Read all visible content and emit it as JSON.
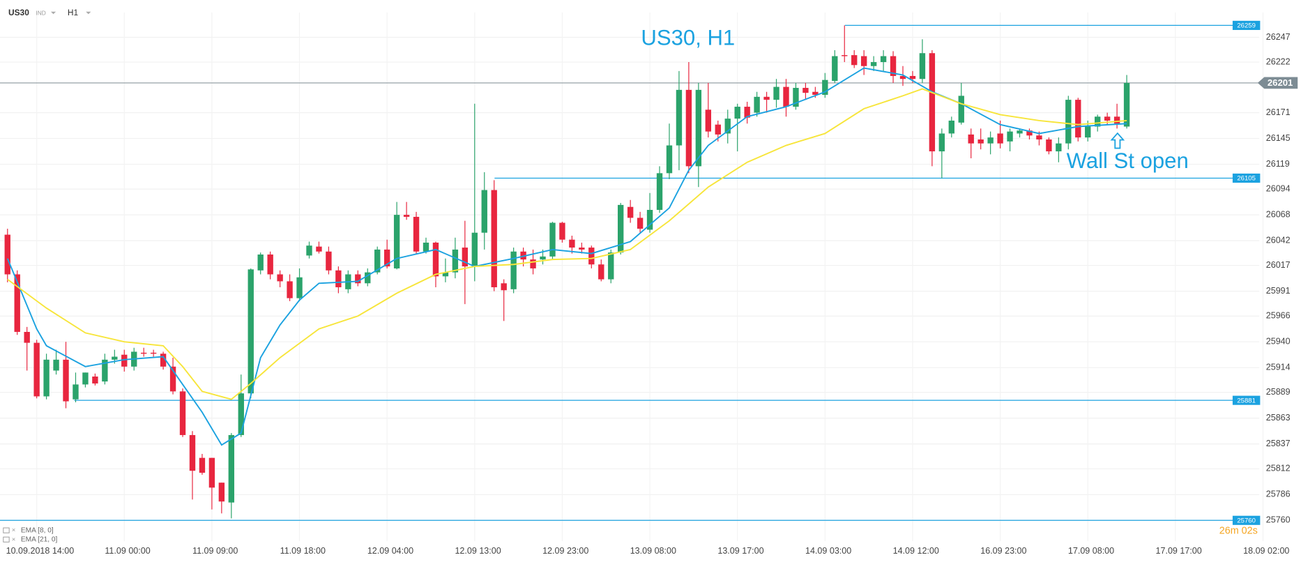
{
  "header": {
    "symbol": "US30",
    "market": "IND",
    "timeframe": "H1"
  },
  "chart_data": {
    "type": "candlestick",
    "title": "US30, H1",
    "annotation": "Wall St open",
    "categories": [
      null,
      null,
      null,
      "10.09.2018 14:00",
      null,
      null,
      null,
      null,
      null,
      null,
      null,
      null,
      "11.09 00:00",
      null,
      null,
      null,
      null,
      null,
      null,
      null,
      null,
      "11.09 09:00",
      null,
      null,
      null,
      null,
      null,
      null,
      null,
      null,
      "11.09 18:00",
      null,
      null,
      null,
      null,
      null,
      null,
      null,
      null,
      "12.09 04:00",
      null,
      null,
      null,
      null,
      null,
      null,
      null,
      null,
      "12.09 13:00",
      null,
      null,
      null,
      null,
      null,
      null,
      null,
      null,
      "12.09 23:00",
      null,
      null,
      null,
      null,
      null,
      null,
      null,
      null,
      "13.09 08:00",
      null,
      null,
      null,
      null,
      null,
      null,
      null,
      null,
      "13.09 17:00",
      null,
      null,
      null,
      null,
      null,
      null,
      null,
      null,
      "14.09 03:00",
      null,
      null,
      null,
      null,
      null,
      null,
      null,
      null,
      "14.09 12:00",
      null,
      null,
      null,
      null,
      null,
      null,
      null,
      null,
      "16.09 23:00",
      null,
      null,
      null,
      null,
      null,
      null,
      null,
      null,
      "17.09 08:00",
      null,
      null,
      null,
      null,
      null,
      null,
      null,
      null,
      "17.09 17:00",
      null,
      null,
      null,
      null,
      null,
      null,
      null,
      null,
      "18.09 02:00"
    ],
    "open": [
      26048,
      26008,
      25950,
      25939,
      25885,
      25911,
      25922,
      25882,
      25897,
      25905,
      25900,
      25922,
      25927,
      25915,
      25929,
      25929,
      25928,
      25915,
      25890,
      25846,
      25823,
      25823,
      25798,
      25778,
      25846,
      25888,
      26012,
      26028,
      26008,
      26001,
      25984,
      26027,
      26036,
      26031,
      26012,
      25993,
      26008,
      25999,
      26010,
      26033,
      26014,
      26068,
      26066,
      26031,
      26040,
      26006,
      26010,
      26035,
      26016,
      26050,
      26093,
      25999,
      25993,
      26031,
      26023,
      26023,
      26026,
      26060,
      26043,
      26035,
      26035,
      26018,
      26003,
      26030,
      26076,
      26065,
      26053,
      26073,
      26110,
      26138,
      26194,
      26117,
      26174,
      26159,
      26150,
      26165,
      26177,
      26171,
      26187,
      26184,
      26197,
      26177,
      26196,
      26192,
      26189,
      26203,
      26229,
      26229,
      26228,
      26218,
      26222,
      26228,
      26208,
      26208,
      26205,
      26231,
      26132,
      26150,
      26161,
      26149,
      26144,
      26140,
      26150,
      26142,
      26150,
      26153,
      26148,
      26144,
      26132,
      26140,
      26184,
      26146,
      26157,
      26167,
      26167,
      26157,
      null,
      null,
      null,
      null,
      null,
      null,
      null,
      null,
      null,
      null,
      null,
      null,
      null,
      null
    ],
    "high": [
      26054,
      26012,
      25955,
      25942,
      25928,
      25932,
      25940,
      25909,
      25909,
      25908,
      25928,
      25932,
      25932,
      25934,
      25934,
      25932,
      25930,
      25924,
      25893,
      25850,
      25827,
      25823,
      25798,
      25848,
      25907,
      26014,
      26030,
      26031,
      26012,
      26008,
      26014,
      26041,
      26041,
      26036,
      26016,
      26012,
      26012,
      26014,
      26036,
      26043,
      26081,
      26081,
      26071,
      26045,
      26041,
      26024,
      26045,
      26062,
      26180,
      26111,
      26103,
      26003,
      26035,
      26035,
      26033,
      26033,
      26061,
      26061,
      26047,
      26040,
      26037,
      26023,
      26033,
      26080,
      26083,
      26071,
      26090,
      26117,
      26160,
      26213,
      26222,
      26201,
      26201,
      26163,
      26174,
      26180,
      26182,
      26192,
      26192,
      26205,
      26205,
      26201,
      26201,
      26197,
      26211,
      26234,
      26259,
      26234,
      26234,
      26228,
      26234,
      26233,
      26218,
      26213,
      26245,
      26234,
      26155,
      26167,
      26201,
      26155,
      26155,
      26152,
      26163,
      26155,
      26155,
      26155,
      26152,
      26146,
      26146,
      26188,
      26186,
      26163,
      26169,
      26171,
      26180,
      26209,
      null,
      null,
      null,
      null,
      null,
      null,
      null,
      null,
      null,
      null,
      null,
      null,
      null,
      null
    ],
    "low": [
      26000,
      25947,
      25911,
      25883,
      25882,
      25907,
      25873,
      25879,
      25894,
      25896,
      25897,
      25918,
      25910,
      25911,
      25925,
      25925,
      25912,
      25887,
      25844,
      25781,
      25806,
      25771,
      25767,
      25762,
      25844,
      25883,
      26008,
      26003,
      25995,
      25981,
      25981,
      26024,
      26029,
      26008,
      25989,
      25989,
      25996,
      25996,
      26008,
      26014,
      26013,
      26063,
      26029,
      26029,
      25995,
      26000,
      26004,
      25978,
      26001,
      26033,
      25991,
      25961,
      25989,
      26016,
      26008,
      26018,
      26023,
      26040,
      26029,
      26029,
      26014,
      26001,
      25999,
      26028,
      26060,
      26050,
      26050,
      26070,
      26104,
      26113,
      26110,
      26096,
      26146,
      26142,
      26140,
      26132,
      26160,
      26167,
      26171,
      26176,
      26167,
      26174,
      26184,
      26186,
      26186,
      26201,
      26222,
      26216,
      26209,
      26213,
      26213,
      26201,
      26198,
      26201,
      26201,
      26117,
      26105,
      26146,
      26159,
      26125,
      26134,
      26129,
      26135,
      26132,
      26146,
      26144,
      26138,
      26129,
      26121,
      26134,
      26142,
      26142,
      26152,
      26159,
      26155,
      26155,
      null,
      null,
      null,
      null,
      null,
      null,
      null,
      null,
      null,
      null,
      null,
      null,
      null,
      null
    ],
    "close": [
      26008,
      25950,
      25939,
      25885,
      25922,
      25922,
      25880,
      25897,
      25909,
      25898,
      25922,
      25925,
      25915,
      25930,
      25928,
      25928,
      25915,
      25890,
      25846,
      25810,
      25808,
      25793,
      25779,
      25846,
      25888,
      26013,
      26028,
      26008,
      26001,
      25984,
      26005,
      26037,
      26031,
      26012,
      25995,
      26008,
      25999,
      26010,
      26033,
      26016,
      26068,
      26066,
      26031,
      26040,
      26006,
      26010,
      26033,
      26016,
      26050,
      26093,
      25995,
      25992,
      26031,
      26023,
      26014,
      26026,
      26060,
      26043,
      26035,
      26033,
      26018,
      26003,
      26030,
      26078,
      26065,
      26054,
      26073,
      26110,
      26138,
      26194,
      26117,
      26194,
      26152,
      26149,
      26165,
      26177,
      26166,
      26187,
      26184,
      26197,
      26177,
      26196,
      26191,
      26189,
      26204,
      26228,
      26228,
      26219,
      26218,
      26222,
      26228,
      26208,
      26205,
      26205,
      26231,
      26132,
      26150,
      26163,
      26188,
      26140,
      26140,
      26146,
      26140,
      26152,
      26153,
      26148,
      26144,
      26132,
      26140,
      26184,
      26146,
      26157,
      26167,
      26163,
      26160,
      26201,
      null,
      null,
      null,
      null,
      null,
      null,
      null,
      null,
      null,
      null,
      null,
      null,
      null,
      null
    ],
    "up_color": "#2ba36b",
    "down_color": "#e8263f",
    "series": [
      {
        "name": "EMA [8, 0]",
        "color": "#1ba2e0",
        "x": [
          0,
          3,
          4,
          8,
          12,
          16,
          20,
          22,
          24,
          26,
          28,
          30,
          32,
          36,
          40,
          44,
          48,
          52,
          56,
          60,
          64,
          68,
          70,
          72,
          76,
          80,
          84,
          88,
          92,
          95,
          98,
          102,
          106,
          110,
          115
        ],
        "values": [
          26024,
          25953,
          25936,
          25915,
          25922,
          25925,
          25869,
          25836,
          25848,
          25924,
          25957,
          25982,
          25999,
          26001,
          26024,
          26033,
          26016,
          26024,
          26033,
          26029,
          26041,
          26075,
          26113,
          26138,
          26167,
          26177,
          26192,
          26216,
          26209,
          26192,
          26180,
          26159,
          26150,
          26157,
          26160
        ]
      },
      {
        "name": "EMA [21, 0]",
        "color": "#f7e53b",
        "x": [
          0,
          4,
          8,
          12,
          16,
          18,
          20,
          23,
          25,
          28,
          32,
          36,
          40,
          44,
          48,
          52,
          56,
          60,
          64,
          68,
          70,
          72,
          76,
          80,
          84,
          88,
          92,
          94,
          98,
          102,
          106,
          110,
          115
        ],
        "values": [
          26003,
          25974,
          25949,
          25940,
          25936,
          25915,
          25890,
          25882,
          25898,
          25924,
          25953,
          25966,
          25989,
          26008,
          26016,
          26018,
          26023,
          26024,
          26033,
          26062,
          26079,
          26096,
          26121,
          26138,
          26150,
          26175,
          26188,
          26195,
          26180,
          26169,
          26163,
          26159,
          26163
        ]
      }
    ],
    "ylim": [
      25739,
      26272
    ],
    "yticks": [
      26247,
      26222,
      26171,
      26145,
      26119,
      26094,
      26068,
      26042,
      26017,
      25991,
      25966,
      25940,
      25914,
      25889,
      25863,
      25837,
      25812,
      25786,
      25760
    ],
    "levels": [
      26259,
      26105,
      25881,
      25760
    ],
    "level_color": "#1ba2e0",
    "current_price": 26201,
    "countdown": "26m 02s",
    "grid": true
  }
}
